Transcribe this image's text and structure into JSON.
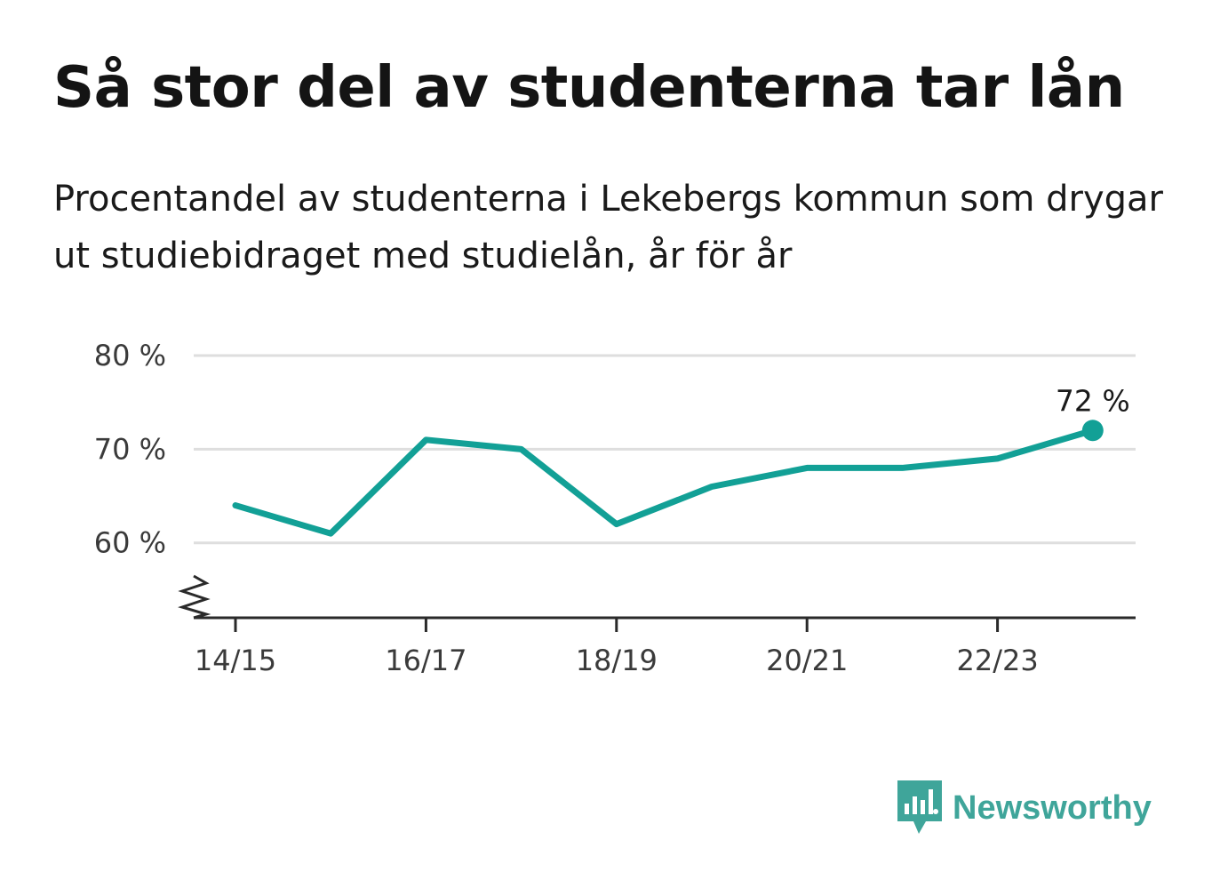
{
  "title": "Så stor del av studenterna tar lån",
  "subtitle": "Procentandel av studenterna i Lekebergs kommun som drygar ut studiebidraget med studielån, år för år",
  "brand": {
    "name": "Newsworthy",
    "color": "#3fa59a"
  },
  "chart_data": {
    "type": "line",
    "x": [
      "14/15",
      "15/16",
      "16/17",
      "17/18",
      "18/19",
      "19/20",
      "20/21",
      "21/22",
      "22/23",
      "23/24"
    ],
    "series": [
      {
        "values": [
          64,
          61,
          71,
          70,
          62,
          66,
          68,
          68,
          69,
          72
        ],
        "color": "#12a096"
      }
    ],
    "xtick_labels": [
      "14/15",
      "16/17",
      "18/19",
      "20/21",
      "22/23"
    ],
    "yticks": [
      60,
      70,
      80
    ],
    "ytick_labels": [
      "60 %",
      "70 %",
      "80 %"
    ],
    "ylim": [
      52,
      80
    ],
    "end_label": "72 %",
    "grid": true,
    "axis_break": true
  }
}
